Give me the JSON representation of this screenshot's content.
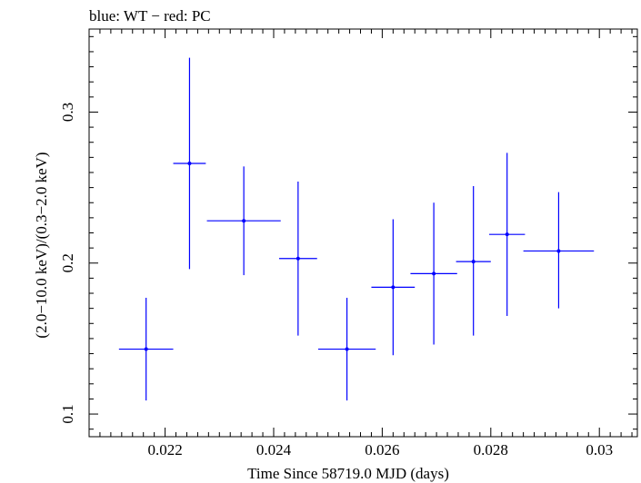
{
  "chart_data": {
    "type": "scatter",
    "title": "blue: WT − red: PC",
    "xlabel": "Time Since 58719.0 MJD (days)",
    "ylabel": "(2.0−10.0 keV)/(0.3−2.0 keV)",
    "xlim": [
      0.0206,
      0.0307
    ],
    "ylim": [
      0.085,
      0.355
    ],
    "x_ticks": [
      0.022,
      0.024,
      0.026,
      0.028,
      0.03
    ],
    "x_tick_labels": [
      "0.022",
      "0.024",
      "0.026",
      "0.028",
      "0.03"
    ],
    "y_ticks": [
      0.1,
      0.2,
      0.3
    ],
    "y_tick_labels": [
      "0.1",
      "0.2",
      "0.3"
    ],
    "grid": false,
    "series": [
      {
        "name": "WT",
        "color": "#0000ff",
        "points": [
          {
            "x": 0.02165,
            "xerr": 0.0005,
            "y": 0.143,
            "ylo": 0.109,
            "yhi": 0.177
          },
          {
            "x": 0.02245,
            "xerr": 0.0003,
            "y": 0.266,
            "ylo": 0.196,
            "yhi": 0.336
          },
          {
            "x": 0.02345,
            "xerr": 0.00068,
            "y": 0.228,
            "ylo": 0.192,
            "yhi": 0.264
          },
          {
            "x": 0.02445,
            "xerr": 0.00035,
            "y": 0.203,
            "ylo": 0.152,
            "yhi": 0.254
          },
          {
            "x": 0.02535,
            "xerr": 0.00053,
            "y": 0.143,
            "ylo": 0.109,
            "yhi": 0.177
          },
          {
            "x": 0.0262,
            "xerr": 0.0004,
            "y": 0.184,
            "ylo": 0.139,
            "yhi": 0.229
          },
          {
            "x": 0.02695,
            "xerr": 0.00043,
            "y": 0.193,
            "ylo": 0.146,
            "yhi": 0.24
          },
          {
            "x": 0.02768,
            "xerr": 0.00032,
            "y": 0.201,
            "ylo": 0.152,
            "yhi": 0.251
          },
          {
            "x": 0.0283,
            "xerr": 0.00033,
            "y": 0.219,
            "ylo": 0.165,
            "yhi": 0.273
          },
          {
            "x": 0.02925,
            "xerr": 0.00065,
            "y": 0.208,
            "ylo": 0.17,
            "yhi": 0.247
          }
        ]
      }
    ]
  }
}
